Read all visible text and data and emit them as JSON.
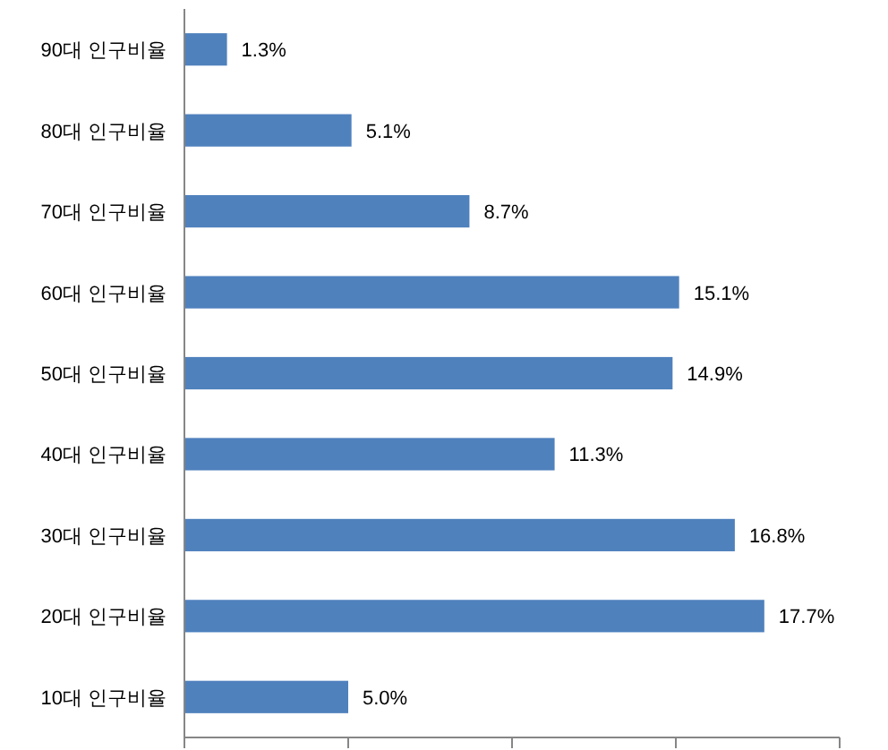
{
  "chart_data": {
    "type": "bar",
    "orientation": "horizontal",
    "categories": [
      "90대 인구비율",
      "80대 인구비율",
      "70대 인구비율",
      "60대 인구비율",
      "50대 인구비율",
      "40대 인구비율",
      "30대 인구비율",
      "20대 인구비율",
      "10대 인구비율"
    ],
    "values": [
      1.3,
      5.1,
      8.7,
      15.1,
      14.9,
      11.3,
      16.8,
      17.7,
      5.0
    ],
    "value_labels": [
      "1.3%",
      "5.1%",
      "8.7%",
      "15.1%",
      "14.9%",
      "11.3%",
      "16.8%",
      "17.7%",
      "5.0%"
    ],
    "color": "#4f81bd",
    "xlim": [
      0,
      20
    ],
    "xticks": [
      {
        "value": 0,
        "label": null
      },
      {
        "value": 5,
        "label": null
      },
      {
        "value": 10,
        "label": null
      },
      {
        "value": 15,
        "label": null
      },
      {
        "value": 20,
        "label": null
      }
    ],
    "tick_labels": "y"
  }
}
